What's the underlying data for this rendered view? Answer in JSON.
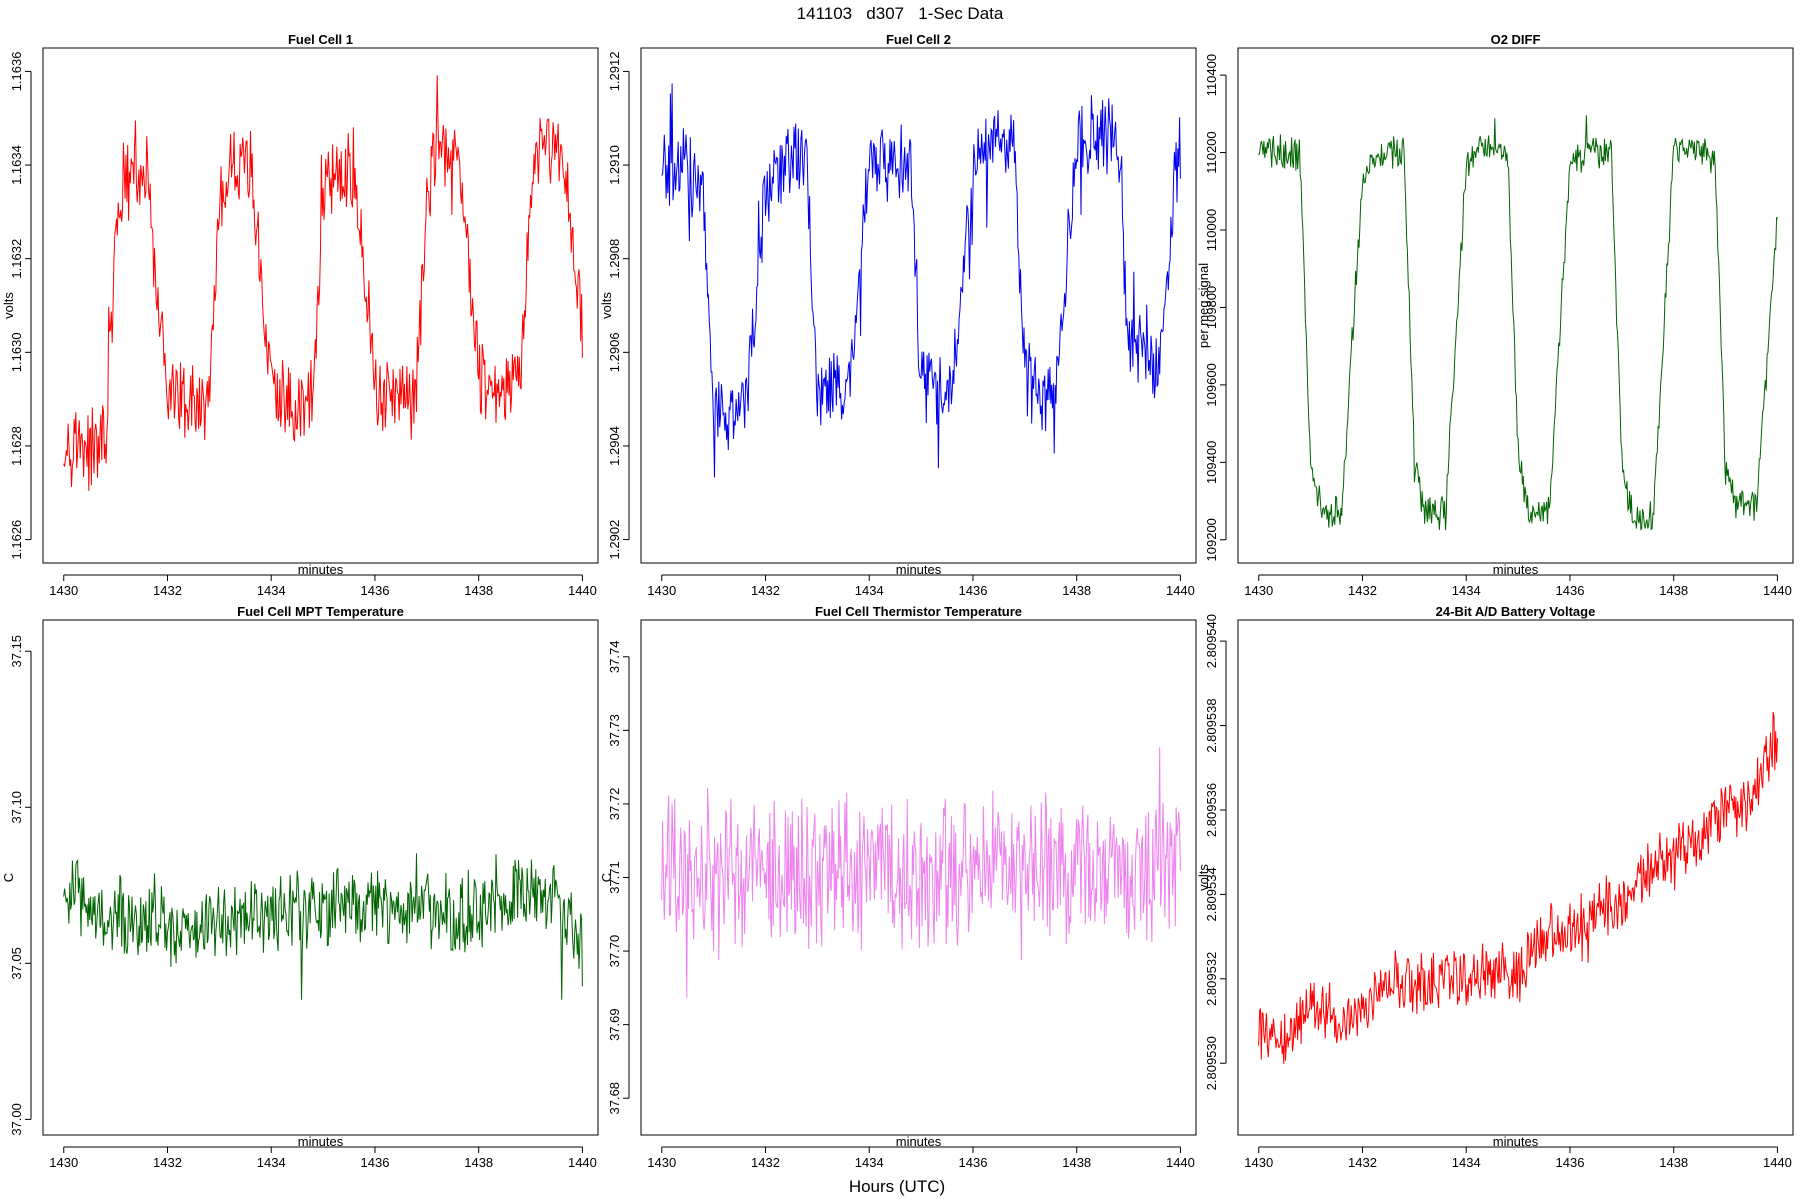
{
  "figure": {
    "title": "141103   d307   1-Sec Data",
    "xlabel": "Hours (UTC)"
  },
  "chart_data": [
    {
      "type": "line",
      "title": "Fuel Cell 1",
      "xlabel": "minutes",
      "ylabel": "volts",
      "color": "#ff0000",
      "xlim": [
        1429.6,
        1440.3
      ],
      "ylim": [
        1.16255,
        1.16365
      ],
      "xticks": [
        1430,
        1432,
        1434,
        1436,
        1438,
        1440
      ],
      "yticks": [
        1.1626,
        1.1628,
        1.163,
        1.1632,
        1.1634,
        1.1636
      ],
      "ytick_labels": [
        "1.1626",
        "1.1628",
        "1.1630",
        "1.1632",
        "1.1634",
        "1.1636"
      ],
      "series": [
        {
          "name": "Fuel Cell 1",
          "x": [
            1430,
            1430.4,
            1430.8,
            1431,
            1431.2,
            1431.6,
            1432,
            1432.4,
            1432.8,
            1433,
            1433.2,
            1433.6,
            1434,
            1434.4,
            1434.8,
            1435,
            1435.2,
            1435.6,
            1436,
            1436.4,
            1436.8,
            1437,
            1437.2,
            1437.6,
            1438,
            1438.4,
            1438.8,
            1439,
            1439.2,
            1439.6,
            1440
          ],
          "values": [
            1.16282,
            1.16279,
            1.16281,
            1.16325,
            1.16336,
            1.16337,
            1.16291,
            1.16288,
            1.1629,
            1.1633,
            1.16339,
            1.1634,
            1.16292,
            1.16287,
            1.1629,
            1.16331,
            1.16338,
            1.16339,
            1.16292,
            1.1629,
            1.16291,
            1.16334,
            1.16342,
            1.16345,
            1.16294,
            1.1629,
            1.16293,
            1.16335,
            1.16344,
            1.16343,
            1.16306
          ]
        }
      ]
    },
    {
      "type": "line",
      "title": "Fuel Cell 2",
      "xlabel": "minutes",
      "ylabel": "volts",
      "color": "#0000ee",
      "xlim": [
        1429.6,
        1440.3
      ],
      "ylim": [
        1.29015,
        1.29125
      ],
      "xticks": [
        1430,
        1432,
        1434,
        1436,
        1438,
        1440
      ],
      "yticks": [
        1.2902,
        1.2904,
        1.2906,
        1.2908,
        1.291,
        1.2912
      ],
      "ytick_labels": [
        "1.2902",
        "1.2904",
        "1.2906",
        "1.2908",
        "1.2910",
        "1.2912"
      ],
      "series": [
        {
          "name": "Fuel Cell 2",
          "x": [
            1430,
            1430.4,
            1430.8,
            1431,
            1431.2,
            1431.6,
            1432,
            1432.4,
            1432.8,
            1433,
            1433.2,
            1433.6,
            1434,
            1434.4,
            1434.8,
            1435,
            1435.2,
            1435.6,
            1436,
            1436.4,
            1436.8,
            1437,
            1437.2,
            1437.6,
            1438,
            1438.4,
            1438.8,
            1439,
            1439.2,
            1439.6,
            1440
          ],
          "values": [
            1.29098,
            1.291,
            1.29095,
            1.2905,
            1.29047,
            1.29048,
            1.29095,
            1.29101,
            1.291,
            1.29052,
            1.29052,
            1.2905,
            1.29098,
            1.29102,
            1.291,
            1.29052,
            1.29054,
            1.2905,
            1.291,
            1.29106,
            1.29105,
            1.29055,
            1.29053,
            1.29051,
            1.29104,
            1.29108,
            1.29105,
            1.2906,
            1.29062,
            1.29058,
            1.29108
          ]
        }
      ]
    },
    {
      "type": "line",
      "title": "O2 DIFF",
      "xlabel": "minutes",
      "ylabel": "per meg signal",
      "color": "#006400",
      "xlim": [
        1429.6,
        1440.3
      ],
      "ylim": [
        109140,
        110470
      ],
      "xticks": [
        1430,
        1432,
        1434,
        1436,
        1438,
        1440
      ],
      "yticks": [
        109200,
        109400,
        109600,
        109800,
        110000,
        110200,
        110400
      ],
      "ytick_labels": [
        "109200",
        "109400",
        "109600",
        "109800",
        "110000",
        "110200",
        "110400"
      ],
      "series": [
        {
          "name": "O2 DIFF",
          "x": [
            1430,
            1430.4,
            1430.8,
            1431,
            1431.2,
            1431.6,
            1432,
            1432.4,
            1432.8,
            1433,
            1433.2,
            1433.6,
            1434,
            1434.4,
            1434.8,
            1435,
            1435.2,
            1435.6,
            1436,
            1436.4,
            1436.8,
            1437,
            1437.2,
            1437.6,
            1438,
            1438.4,
            1438.8,
            1439,
            1439.2,
            1439.6,
            1440
          ],
          "values": [
            110200,
            110205,
            110185,
            109400,
            109280,
            109270,
            110150,
            110200,
            110195,
            109420,
            109270,
            109265,
            110180,
            110215,
            110205,
            109430,
            109275,
            109270,
            110180,
            110205,
            110200,
            109410,
            109260,
            109255,
            110200,
            110215,
            110180,
            109380,
            109290,
            109285,
            110040
          ]
        }
      ]
    },
    {
      "type": "line",
      "title": "Fuel Cell MPT Temperature",
      "xlabel": "minutes",
      "ylabel": "C",
      "color": "#006400",
      "xlim": [
        1429.6,
        1440.3
      ],
      "ylim": [
        36.995,
        37.16
      ],
      "xticks": [
        1430,
        1432,
        1434,
        1436,
        1438,
        1440
      ],
      "yticks": [
        37.0,
        37.05,
        37.1,
        37.15
      ],
      "ytick_labels": [
        "37.00",
        "37.05",
        "37.10",
        "37.15"
      ],
      "series": [
        {
          "name": "Fuel Cell MPT Temperature",
          "x": [
            1430,
            1430.5,
            1431,
            1431.5,
            1432,
            1432.5,
            1433,
            1433.5,
            1434,
            1434.5,
            1435,
            1435.5,
            1436,
            1436.5,
            1437,
            1437.5,
            1438,
            1438.5,
            1439,
            1439.5,
            1440
          ],
          "values": [
            37.075,
            37.07,
            37.065,
            37.063,
            37.062,
            37.06,
            37.062,
            37.065,
            37.066,
            37.066,
            37.068,
            37.07,
            37.068,
            37.067,
            37.068,
            37.066,
            37.067,
            37.068,
            37.075,
            37.072,
            37.055
          ]
        }
      ]
    },
    {
      "type": "line",
      "title": "Fuel Cell Thermistor Temperature",
      "xlabel": "minutes",
      "ylabel": "C",
      "color": "#ee82ee",
      "xlim": [
        1429.6,
        1440.3
      ],
      "ylim": [
        37.675,
        37.745
      ],
      "xticks": [
        1430,
        1432,
        1434,
        1436,
        1438,
        1440
      ],
      "yticks": [
        37.68,
        37.69,
        37.7,
        37.71,
        37.72,
        37.73,
        37.74
      ],
      "ytick_labels": [
        "37.68",
        "37.69",
        "37.70",
        "37.71",
        "37.72",
        "37.73",
        "37.74"
      ],
      "series": [
        {
          "name": "Fuel Cell Thermistor Temperature",
          "x": [
            1430,
            1431,
            1432,
            1433,
            1434,
            1435,
            1436,
            1437,
            1438,
            1439,
            1440
          ],
          "values": [
            37.711,
            37.711,
            37.711,
            37.71,
            37.712,
            37.711,
            37.71,
            37.711,
            37.711,
            37.71,
            37.712
          ]
        }
      ]
    },
    {
      "type": "line",
      "title": "24-Bit A/D Battery Voltage",
      "xlabel": "minutes",
      "ylabel": "volts",
      "color": "#ff0000",
      "xlim": [
        1429.6,
        1440.3
      ],
      "ylim": [
        2.8095283,
        2.8095405
      ],
      "xticks": [
        1430,
        1432,
        1434,
        1436,
        1438,
        1440
      ],
      "yticks": [
        2.80953,
        2.809532,
        2.809534,
        2.809536,
        2.809538,
        2.80954
      ],
      "ytick_labels": [
        "2.809530",
        "2.809532",
        "2.809534",
        "2.809536",
        "2.809538",
        "2.809540"
      ],
      "series": [
        {
          "name": "24-Bit A/D Battery Voltage",
          "x": [
            1430,
            1430.5,
            1431,
            1431.5,
            1432,
            1432.5,
            1433,
            1433.5,
            1434,
            1434.5,
            1435,
            1435.5,
            1436,
            1436.5,
            1437,
            1437.5,
            1438,
            1438.5,
            1439,
            1439.5,
            1440
          ],
          "values": [
            2.8095308,
            2.8095305,
            2.8095313,
            2.8095309,
            2.8095312,
            2.809532,
            2.8095318,
            2.809532,
            2.8095321,
            2.8095322,
            2.8095322,
            2.809533,
            2.8095332,
            2.8095336,
            2.8095338,
            2.8095345,
            2.809535,
            2.8095354,
            2.809536,
            2.8095362,
            2.8095378
          ]
        }
      ]
    }
  ]
}
